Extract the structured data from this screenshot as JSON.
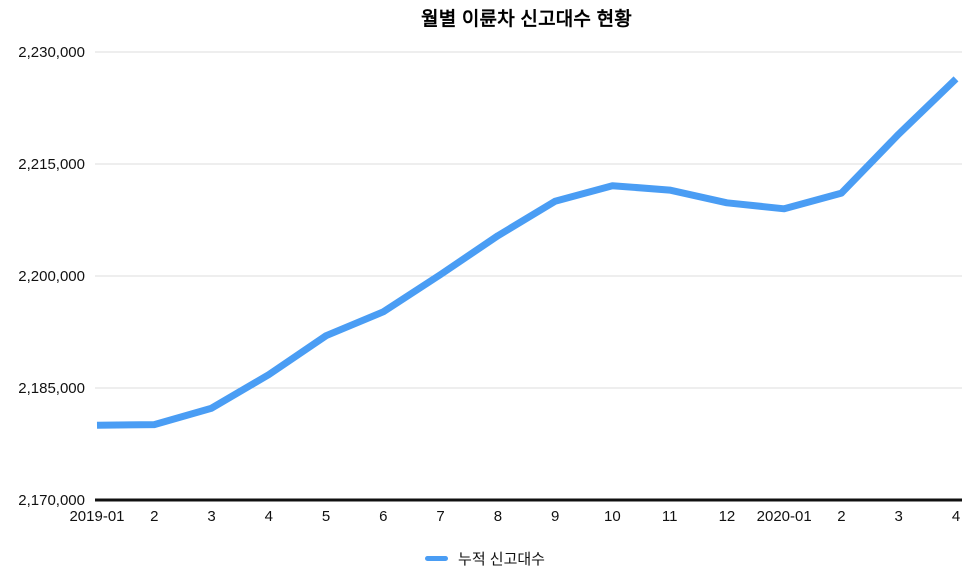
{
  "chart_data": {
    "type": "line",
    "title": "월별 이륜차 신고대수 현황",
    "categories": [
      "2019-01",
      "2",
      "3",
      "4",
      "5",
      "6",
      "7",
      "8",
      "9",
      "10",
      "11",
      "12",
      "2020-01",
      "2",
      "3",
      "4"
    ],
    "series": [
      {
        "name": "누적 신고대수",
        "color": "#4A9DF4",
        "values": [
          2180000,
          2180100,
          2182300,
          2186800,
          2192000,
          2195200,
          2200200,
          2205400,
          2210000,
          2212100,
          2211500,
          2209800,
          2209000,
          2211100,
          2219000,
          2226400
        ]
      }
    ],
    "xlabel": "",
    "ylabel": "",
    "ylim": [
      2170000,
      2230000
    ],
    "ytick_step": 15000,
    "ytick_labels": [
      "2,170,000",
      "2,185,000",
      "2,200,000",
      "2,215,000",
      "2,230,000"
    ],
    "grid": true,
    "legend_position": "bottom"
  },
  "colors": {
    "line": "#4A9DF4",
    "gridline": "#DCDCDC",
    "axis_line": "#111111",
    "text": "#111111",
    "background": "#FFFFFF"
  }
}
